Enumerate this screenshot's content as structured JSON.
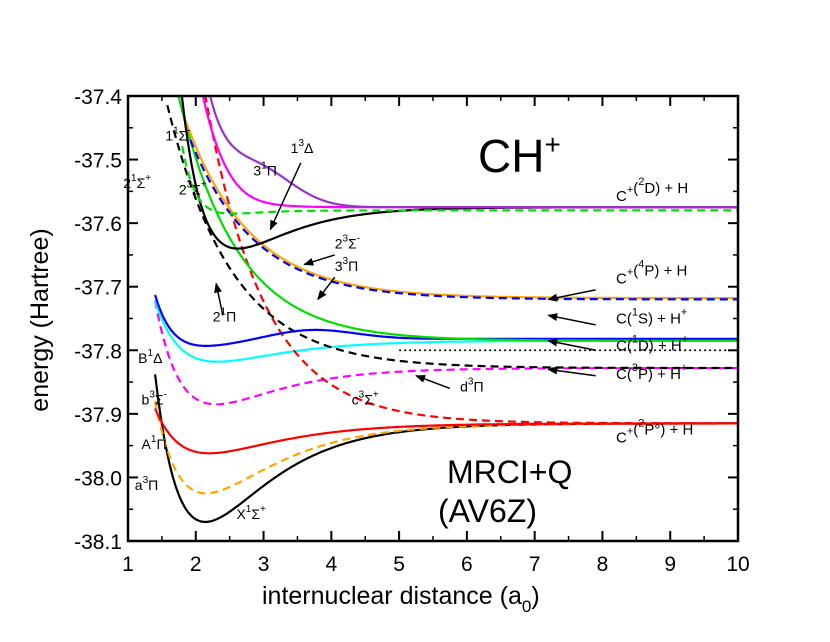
{
  "chart_data": {
    "type": "line",
    "title": "CH+",
    "molecule": {
      "base": "CH",
      "sup": "+"
    },
    "method": "MRCI+Q",
    "basis": "(AV6Z)",
    "xlabel": {
      "text": "internuclear distance (a",
      "sub": "0",
      "close": ")"
    },
    "ylabel": "energy (Hartree)",
    "xlim": [
      1,
      10
    ],
    "ylim": [
      -38.1,
      -37.4
    ],
    "xticks": [
      "1",
      "2",
      "3",
      "4",
      "5",
      "6",
      "7",
      "8",
      "9",
      "10"
    ],
    "yticks": [
      "-37.4",
      "-37.5",
      "-37.6",
      "-37.7",
      "-37.8",
      "-37.9",
      "-38.0",
      "-38.1"
    ],
    "series": [
      {
        "name": "X1Σ+",
        "color": "#000000",
        "dash": false,
        "Re": 2.14,
        "De": 0.155,
        "beta": 1.08,
        "Einf": -37.915,
        "xstart": 1.4
      },
      {
        "name": "a3Π",
        "color": "#ffa500",
        "dash": true,
        "Re": 2.15,
        "De": 0.11,
        "beta": 1.02,
        "Einf": -37.915,
        "xstart": 1.4
      },
      {
        "name": "A1Π",
        "color": "#ff0000",
        "dash": false,
        "Re": 2.2,
        "De": 0.047,
        "beta": 1.0,
        "Einf": -37.915,
        "xstart": 1.4
      },
      {
        "name": "b3Σ-",
        "color": "#ff00ff",
        "dash": true,
        "Re": 2.3,
        "De": 0.057,
        "beta": 1.1,
        "Einf": -37.828,
        "xstart": 1.4
      },
      {
        "name": "B1Δ",
        "color": "#00ffff",
        "dash": false,
        "Re": 2.32,
        "De": 0.033,
        "beta": 1.08,
        "Einf": -37.785,
        "xstart": 1.4
      },
      {
        "name": "c3Σ+",
        "color": "#ff0000",
        "dash": true,
        "type": "repulsive",
        "Einf": -37.915,
        "A": 0.68,
        "k": 1.15,
        "x0": 1.9,
        "xstart": 1.95
      },
      {
        "name": "d3Π",
        "color": "#000000",
        "dash": true,
        "type": "repulsive",
        "Einf": -37.828,
        "A": 0.45,
        "k": 1.05,
        "x0": 1.5,
        "xstart": 1.58
      },
      {
        "name": "C(1D)+H+",
        "color": "#0000ff",
        "dash": false,
        "Re": 2.2,
        "De": 0.012,
        "beta": 1.6,
        "Einf": -37.782,
        "xstart": 1.4,
        "hump": 0.016,
        "humpR": 3.7,
        "humpW": 0.9
      },
      {
        "name": "C(1S)+H+ green",
        "color": "#00dd00",
        "dash": false,
        "type": "repulsive",
        "Einf": -37.785,
        "A": 0.43,
        "k": 1.15,
        "x0": 1.65,
        "xstart": 1.72
      },
      {
        "name": "3 3Π",
        "color": "#ffa500",
        "dash": false,
        "type": "repulsive",
        "Einf": -37.718,
        "A": 0.31,
        "k": 1.05,
        "x0": 1.75,
        "xstart": 1.82
      },
      {
        "name": "2 3Σ-",
        "color": "#0000ff",
        "dash": true,
        "type": "repulsive",
        "Einf": -37.72,
        "A": 0.27,
        "k": 1.05,
        "x0": 1.85,
        "xstart": 1.92
      },
      {
        "name": "2 1Π",
        "color": "#000000",
        "dash": false,
        "Re": 2.62,
        "De": 0.065,
        "beta": 1.3,
        "Einf": -37.575,
        "xstart": 1.4
      },
      {
        "name": "2 3Σ+",
        "color": "#00dd00",
        "dash": true,
        "Re": 2.55,
        "De": 0.005,
        "beta": 2.3,
        "Einf": -37.58,
        "xstart": 1.8
      },
      {
        "name": "1 1Σ-",
        "color": "#ff00ff",
        "dash": false,
        "Re": 2.6,
        "De": 0.0,
        "beta": 1.0,
        "Einf": -37.575,
        "xstart": 1.8,
        "hump": 0.05,
        "humpR": 1.9,
        "humpW": 0.55,
        "rep": true
      },
      {
        "name": "3 1Π",
        "color": "#9932cc",
        "dash": false,
        "Re": 2.7,
        "De": 0.0,
        "beta": 1.0,
        "Einf": -37.575,
        "xstart": 1.95,
        "hump": 0.055,
        "humpR": 2.9,
        "humpW": 0.75,
        "rep": true
      },
      {
        "name": "d3Π tail dotted",
        "color": "#000000",
        "dash": "dot",
        "type": "flat",
        "Einf": -37.8,
        "xstart": 5.0,
        "xend": 10
      }
    ],
    "state_labels": [
      {
        "base": "1",
        "sup": "1",
        "sym": "Σ",
        "sup2": "-",
        "x": 1.55,
        "y": -37.47
      },
      {
        "base": "3",
        "sup": "1",
        "sym": "Π",
        "sup2": "",
        "x": 2.85,
        "y": -37.525
      },
      {
        "base": "1",
        "sup": "3",
        "sym": "Δ",
        "sup2": "",
        "x": 3.4,
        "y": -37.49
      },
      {
        "base": "2",
        "sup": "1",
        "sym": "Σ",
        "sup2": "+",
        "x": 0.93,
        "y": -37.545
      },
      {
        "base": "2",
        "sup": "3",
        "sym": "Σ",
        "sup2": "+",
        "x": 1.75,
        "y": -37.555
      },
      {
        "base": "2",
        "sup": "3",
        "sym": "Σ",
        "sup2": "-",
        "x": 4.05,
        "y": -37.64
      },
      {
        "base": "3",
        "sup": "3",
        "sym": "Π",
        "sup2": "",
        "x": 4.05,
        "y": -37.675
      },
      {
        "base": "2",
        "sup": "1",
        "sym": "Π",
        "sup2": "",
        "x": 2.25,
        "y": -37.755
      },
      {
        "base": "B",
        "sup": "1",
        "sym": "Δ",
        "sup2": "",
        "x": 1.15,
        "y": -37.82
      },
      {
        "base": "b",
        "sup": "3",
        "sym": "Σ",
        "sup2": "-",
        "x": 1.2,
        "y": -37.885
      },
      {
        "base": "c",
        "sup": "3",
        "sym": "Σ",
        "sup2": "+",
        "x": 4.3,
        "y": -37.885
      },
      {
        "base": "d",
        "sup": "3",
        "sym": "Π",
        "sup2": "",
        "x": 5.9,
        "y": -37.865
      },
      {
        "base": "A",
        "sup": "1",
        "sym": "Π",
        "sup2": "",
        "x": 1.2,
        "y": -37.955
      },
      {
        "base": "a",
        "sup": "3",
        "sym": "Π",
        "sup2": "",
        "x": 1.1,
        "y": -38.02
      },
      {
        "base": "X",
        "sup": "1",
        "sym": "Σ",
        "sup2": "+",
        "x": 2.6,
        "y": -38.065
      }
    ],
    "asymptote_labels": [
      {
        "pre": "C",
        "sup": "+",
        "mid": "(",
        "sup2": "2",
        "term": "D) + H",
        "sup3": "",
        "x": 8.2,
        "y": -37.565
      },
      {
        "pre": "C",
        "sup": "+",
        "mid": "(",
        "sup2": "4",
        "term": "P) + H",
        "sup3": "",
        "x": 8.2,
        "y": -37.695
      },
      {
        "pre": "C",
        "sup": "",
        "mid": "(",
        "sup2": "1",
        "term": "S) + H",
        "sup3": "+",
        "x": 8.2,
        "y": -37.758
      },
      {
        "pre": "C",
        "sup": "",
        "mid": "(",
        "sup2": "1",
        "term": "D) + H",
        "sup3": "+",
        "x": 8.2,
        "y": -37.8
      },
      {
        "pre": "C",
        "sup": "",
        "mid": "(",
        "sup2": "3",
        "term": "P) + H",
        "sup3": "+",
        "x": 8.2,
        "y": -37.845
      },
      {
        "pre": "C",
        "sup": "+",
        "mid": "(",
        "sup2": "2",
        "term": "P°) + H",
        "sup3": "",
        "x": 8.2,
        "y": -37.945
      }
    ]
  }
}
